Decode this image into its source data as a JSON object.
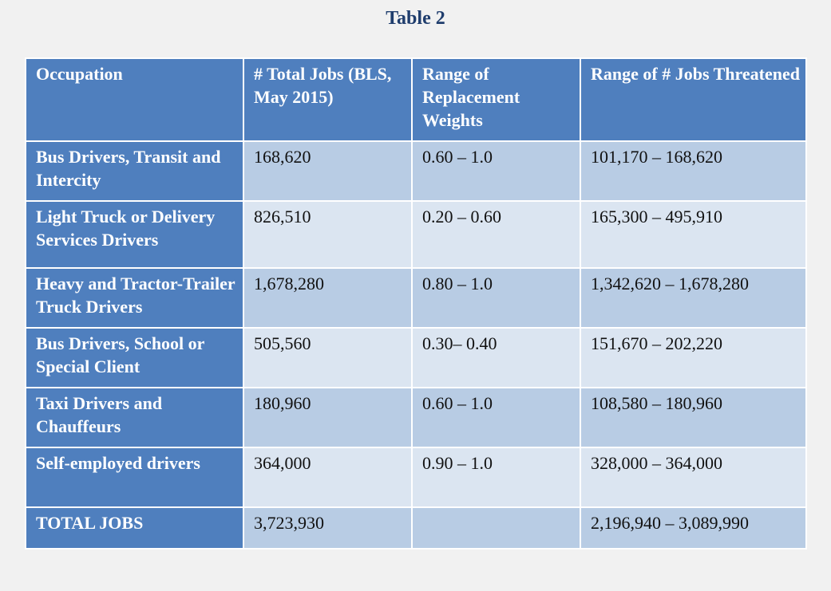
{
  "title": "Table 2",
  "table": {
    "headers": [
      "Occupation",
      "# Total Jobs (BLS, May 2015)",
      "Range of Replacement Weights",
      "Range of # Jobs Threatened"
    ],
    "rows": [
      [
        "Bus Drivers, Transit and Intercity",
        "168,620",
        "0.60 – 1.0",
        "101,170 – 168,620"
      ],
      [
        "Light Truck or Delivery Services Drivers",
        "826,510",
        "0.20 – 0.60",
        "165,300 – 495,910"
      ],
      [
        "Heavy and Tractor-Trailer Truck Drivers",
        "1,678,280",
        "0.80 – 1.0",
        "1,342,620 – 1,678,280"
      ],
      [
        "Bus Drivers, School or Special Client",
        "505,560",
        "0.30– 0.40",
        "151,670 – 202,220"
      ],
      [
        "Taxi Drivers and Chauffeurs",
        "180,960",
        "0.60 – 1.0",
        "108,580 – 180,960"
      ],
      [
        "Self-employed drivers",
        "364,000",
        "0.90 – 1.0",
        "328,000 – 364,000"
      ],
      [
        "TOTAL JOBS",
        "3,723,930",
        "",
        "2,196,940 – 3,089,990"
      ]
    ]
  },
  "colors": {
    "header_blue": "#4f7fbe",
    "cell_light": "#dbe5f1",
    "cell_dark": "#b8cce4",
    "title_navy": "#1f3d6d"
  }
}
